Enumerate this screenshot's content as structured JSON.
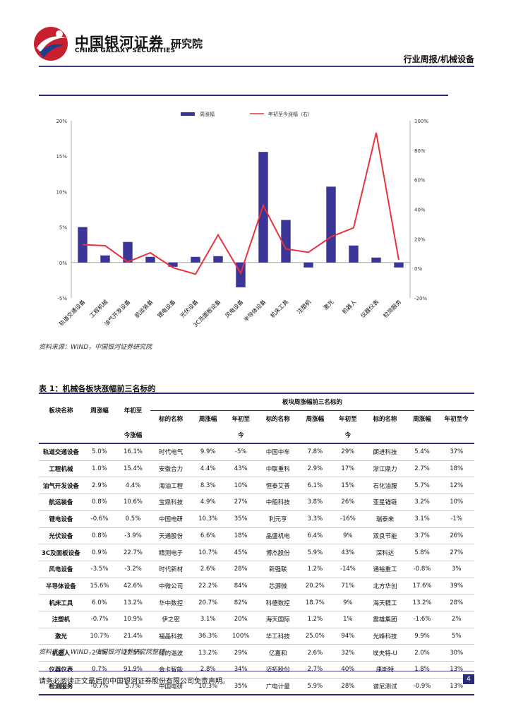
{
  "header": {
    "brand_cn": "中国银河证券",
    "brand_en": "CHINA GALAXY SECURITIES",
    "institute": "研究院",
    "category": "行业周报/机械设备"
  },
  "colors": {
    "bar": "#3a3596",
    "line": "#e8323c",
    "rule": "#2b2b7a"
  },
  "chart_data": {
    "type": "bar+line",
    "legend": [
      "周涨幅",
      "年初至今涨幅（右）"
    ],
    "legend_position": "top",
    "categories": [
      "轨道交通设备",
      "工程机械",
      "油气开发设备",
      "航运装备",
      "锂电设备",
      "光伏设备",
      "3C及面板设备",
      "风电设备",
      "半导体设备",
      "机床工具",
      "注塑机",
      "激光",
      "机器人",
      "仪器仪表",
      "检测服务"
    ],
    "left_axis": {
      "ticks": [
        "20%",
        "15%",
        "10%",
        "5%",
        "0%",
        "-5%"
      ],
      "ylim": [
        -5,
        20
      ]
    },
    "right_axis": {
      "ticks": [
        "100%",
        "80%",
        "60%",
        "40%",
        "20%",
        "0%",
        "-20%"
      ],
      "ylim": [
        -20,
        100
      ]
    },
    "series": [
      {
        "name": "周涨幅",
        "kind": "bar",
        "axis": "left",
        "values": [
          5.0,
          1.0,
          2.9,
          0.8,
          -0.6,
          0.8,
          0.9,
          -3.5,
          15.6,
          6.0,
          -0.7,
          10.7,
          2.4,
          0.7,
          -0.7
        ]
      },
      {
        "name": "年初至今涨幅（右）",
        "kind": "line",
        "axis": "right",
        "values": [
          16.1,
          15.4,
          4.4,
          10.6,
          0.5,
          -3.9,
          22.7,
          -3.2,
          42.6,
          13.2,
          10.9,
          21.4,
          27.5,
          91.9,
          5.7
        ]
      }
    ],
    "source": "资料来源：WIND，中国银河证券研究院"
  },
  "table": {
    "title": "表 1：机械各板块涨幅前三名标的",
    "group_header": "板块周涨幅前三名标的",
    "headers": {
      "sector": "板块名称",
      "week": "周涨幅",
      "ytd_a": "年初至",
      "ytd_b": "今涨幅",
      "name": "标的名称",
      "ytd_s_a": "年初至",
      "ytd_s_b": "今",
      "ytd_full": "年初至今"
    },
    "rows": [
      [
        "轨道交通设备",
        "5.0%",
        "16.1%",
        "时代电气",
        "9.9%",
        "-5%",
        "中国中车",
        "7.8%",
        "29%",
        "朗进科技",
        "5.4%",
        "37%"
      ],
      [
        "工程机械",
        "1.0%",
        "15.4%",
        "安徽合力",
        "4.4%",
        "43%",
        "中联重科",
        "2.9%",
        "17%",
        "浙江鼎力",
        "2.7%",
        "18%"
      ],
      [
        "油气开发设备",
        "2.9%",
        "4.4%",
        "海油工程",
        "8.3%",
        "10%",
        "恒泰艾普",
        "6.1%",
        "15%",
        "石化油服",
        "5.7%",
        "12%"
      ],
      [
        "航运装备",
        "0.8%",
        "10.6%",
        "宝鼎科技",
        "4.9%",
        "27%",
        "中船科技",
        "3.8%",
        "26%",
        "亚星锚链",
        "3.2%",
        "10%"
      ],
      [
        "锂电设备",
        "-0.6%",
        "0.5%",
        "中国电研",
        "10.3%",
        "35%",
        "利元亨",
        "3.3%",
        "-16%",
        "瑞泰来",
        "3.1%",
        "-1%"
      ],
      [
        "光伏设备",
        "0.8%",
        "-3.9%",
        "天通股份",
        "6.6%",
        "18%",
        "晶盛机电",
        "6.4%",
        "9%",
        "双良节能",
        "3.7%",
        "26%"
      ],
      [
        "3C及面板设备",
        "0.9%",
        "22.7%",
        "精测电子",
        "10.7%",
        "45%",
        "博杰股份",
        "5.9%",
        "43%",
        "深科达",
        "5.8%",
        "27%"
      ],
      [
        "风电设备",
        "-3.5%",
        "-3.2%",
        "时代新材",
        "2.6%",
        "28%",
        "新强联",
        "1.2%",
        "-14%",
        "通裕重工",
        "-0.8%",
        "3%"
      ],
      [
        "半导体设备",
        "15.6%",
        "42.6%",
        "中微公司",
        "22.2%",
        "84%",
        "芯源微",
        "20.2%",
        "71%",
        "北方华创",
        "17.6%",
        "39%"
      ],
      [
        "机床工具",
        "6.0%",
        "13.2%",
        "华中数控",
        "20.7%",
        "82%",
        "科德数控",
        "18.7%",
        "9%",
        "海天精工",
        "13.2%",
        "28%"
      ],
      [
        "注塑机",
        "-0.7%",
        "10.9%",
        "伊之密",
        "3.1%",
        "20%",
        "海天国际",
        "1.2%",
        "1%",
        "震雄集团",
        "-1.6%",
        "2%"
      ],
      [
        "激光",
        "10.7%",
        "21.4%",
        "福晶科技",
        "36.3%",
        "100%",
        "华工科技",
        "25.0%",
        "94%",
        "光峰科技",
        "9.9%",
        "5%"
      ],
      [
        "机器人",
        "2.4%",
        "27.5%",
        "绿的谐波",
        "13.2%",
        "29%",
        "亿嘉和",
        "2.6%",
        "32%",
        "埃夫特-U",
        "2.0%",
        "30%"
      ],
      [
        "仪器仪表",
        "0.7%",
        "91.9%",
        "金卡智能",
        "2.8%",
        "34%",
        "迈拓股份",
        "2.7%",
        "40%",
        "康斯特",
        "1.8%",
        "13%"
      ],
      [
        "检测服务",
        "-0.7%",
        "5.7%",
        "中国电研",
        "10.3%",
        "35%",
        "广电计量",
        "5.9%",
        "28%",
        "谱尼测试",
        "-0.9%",
        "13%"
      ]
    ],
    "source": "资料来源：WIND，中国银河证券研究院整理"
  },
  "footer": {
    "disclaimer": "请务必阅读正文最后的中国银河证券股份有限公司免责声明。",
    "page": "4"
  }
}
